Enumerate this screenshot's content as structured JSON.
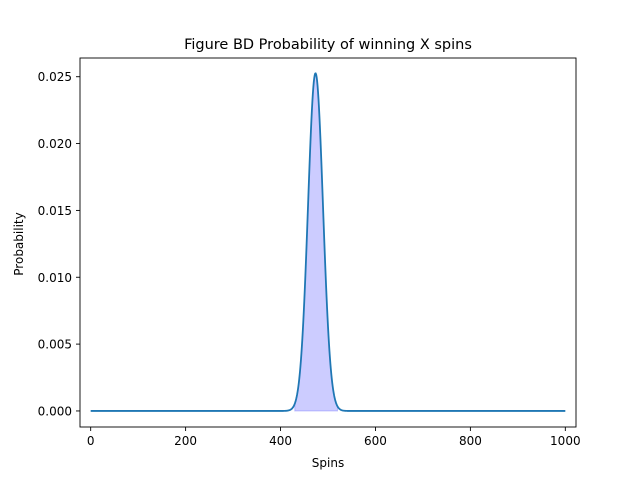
{
  "chart_data": {
    "type": "line",
    "title": "Figure BD Probability of winning X spins",
    "xlabel": "Spins",
    "ylabel": "Probability",
    "xlim": [
      -22.5,
      1022.5
    ],
    "ylim": [
      -0.0012,
      0.0264
    ],
    "xticks": [
      0,
      200,
      400,
      600,
      800,
      1000
    ],
    "xtick_labels": [
      "0",
      "200",
      "400",
      "600",
      "800",
      "1000"
    ],
    "yticks": [
      0.0,
      0.005,
      0.01,
      0.015,
      0.02,
      0.025
    ],
    "ytick_labels": [
      "0.000",
      "0.005",
      "0.010",
      "0.015",
      "0.020",
      "0.025"
    ],
    "grid": false,
    "series": [
      {
        "distribution": "binomial",
        "n": 1000,
        "p": 0.4737,
        "x_start": 0,
        "x_end": 1000,
        "peak_x": 474,
        "peak_y": 0.0252,
        "color": "#1f77b4",
        "fill_color": "#0000ff",
        "fill_opacity": 0.2,
        "fill_x_range": [
          430,
          520
        ]
      }
    ]
  }
}
